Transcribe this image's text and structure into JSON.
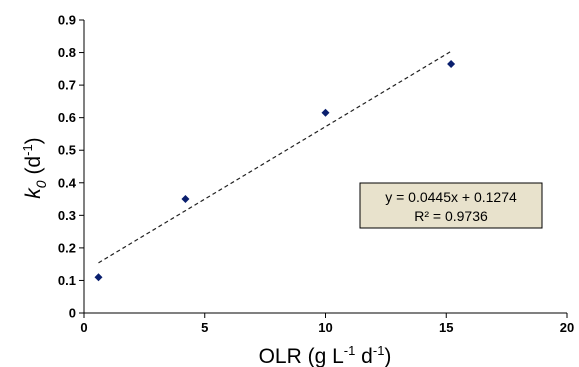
{
  "chart_data": {
    "type": "scatter",
    "title": "",
    "xlabel": {
      "base": "OLR (g L",
      "sup1": "-1",
      "mid": " d",
      "sup2": "-1",
      "end": ")"
    },
    "ylabel": {
      "italic": "k",
      "sub": "0",
      "rest": " (d",
      "sup": "-1",
      "end": ")"
    },
    "xlim": [
      0,
      20
    ],
    "ylim": [
      0,
      0.9
    ],
    "x_ticks": [
      "0",
      "5",
      "10",
      "15",
      "20"
    ],
    "y_ticks": [
      "0",
      "0.1",
      "0.2",
      "0.3",
      "0.4",
      "0.5",
      "0.6",
      "0.7",
      "0.8",
      "0.9"
    ],
    "grid": false,
    "legend": "none",
    "series": [
      {
        "marker": "diamond",
        "color": "#0a1f6e",
        "x": [
          0.6,
          4.2,
          10.0,
          15.2
        ],
        "y": [
          0.11,
          0.35,
          0.615,
          0.765
        ]
      }
    ],
    "trendline": {
      "style": "dashed",
      "slope": 0.0445,
      "intercept": 0.1274,
      "x_range": [
        0.6,
        15.2
      ],
      "equation": "y = 0.0445x + 0.1274",
      "r_squared": "R² = 0.9736",
      "box_fill": "#e8e2cc"
    }
  }
}
